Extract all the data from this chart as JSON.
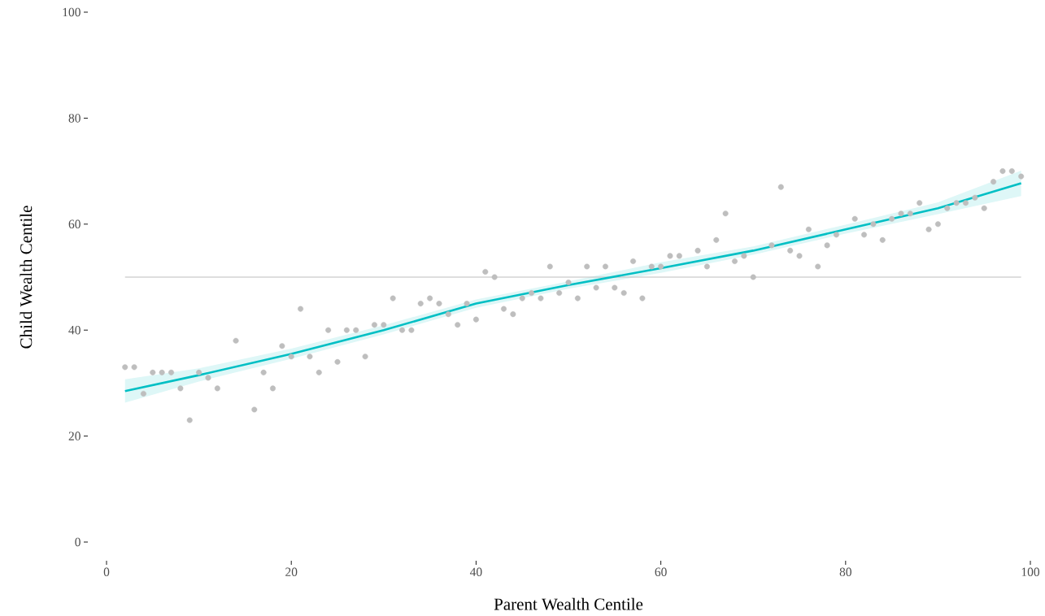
{
  "chart_data": {
    "type": "scatter",
    "xlabel": "Parent Wealth Centile",
    "ylabel": "Child Wealth Centile",
    "xlim": [
      0,
      100
    ],
    "ylim": [
      0,
      100
    ],
    "xticks": [
      0,
      20,
      40,
      60,
      80,
      100
    ],
    "yticks": [
      0,
      20,
      40,
      60,
      80,
      100
    ],
    "grid": false,
    "ref_lines": [
      {
        "axis": "y",
        "value": 50,
        "color": "#bdbdbd"
      }
    ],
    "series": [
      {
        "marker": "circle",
        "color": "#bebebe",
        "x": [
          2,
          3,
          4,
          5,
          6,
          7,
          8,
          9,
          10,
          11,
          12,
          14,
          16,
          17,
          18,
          19,
          20,
          21,
          22,
          23,
          24,
          25,
          26,
          27,
          28,
          29,
          30,
          31,
          32,
          33,
          34,
          35,
          36,
          37,
          38,
          39,
          40,
          41,
          42,
          43,
          44,
          45,
          46,
          47,
          48,
          49,
          50,
          51,
          52,
          53,
          54,
          55,
          56,
          57,
          58,
          59,
          60,
          61,
          62,
          64,
          65,
          66,
          67,
          68,
          69,
          70,
          72,
          73,
          74,
          75,
          76,
          77,
          78,
          79,
          81,
          82,
          83,
          84,
          85,
          86,
          87,
          88,
          89,
          90,
          91,
          92,
          93,
          94,
          95,
          96,
          97,
          98,
          99
        ],
        "values": [
          33,
          33,
          28,
          32,
          32,
          32,
          29,
          23,
          32,
          31,
          29,
          38,
          25,
          32,
          29,
          37,
          35,
          44,
          35,
          32,
          40,
          34,
          40,
          40,
          35,
          41,
          41,
          46,
          40,
          40,
          45,
          46,
          45,
          43,
          41,
          45,
          42,
          51,
          50,
          44,
          43,
          46,
          47,
          46,
          52,
          47,
          49,
          46,
          52,
          48,
          52,
          48,
          47,
          53,
          46,
          52,
          52,
          54,
          54,
          55,
          52,
          57,
          62,
          53,
          54,
          50,
          56,
          67,
          55,
          54,
          59,
          52,
          56,
          58,
          61,
          58,
          60,
          57,
          61,
          62,
          62,
          64,
          59,
          60,
          63,
          64,
          64,
          65,
          63,
          68,
          70,
          70,
          69
        ]
      },
      {
        "type": "line",
        "marker": "none",
        "color": "#00bfc4",
        "x": [
          2,
          10,
          20,
          30,
          40,
          50,
          60,
          70,
          80,
          90,
          99
        ],
        "values": [
          28.5,
          31.5,
          35.5,
          40,
          45,
          48.5,
          51.7,
          55,
          59,
          63,
          67.7
        ],
        "lower": [
          26.3,
          30.3,
          34.6,
          39.2,
          44.2,
          47.8,
          50.8,
          54.2,
          58.2,
          61.9,
          65.3
        ],
        "upper": [
          30.7,
          32.8,
          36.5,
          40.9,
          45.8,
          49.2,
          52.8,
          55.8,
          59.9,
          64.1,
          70.1
        ]
      }
    ]
  }
}
